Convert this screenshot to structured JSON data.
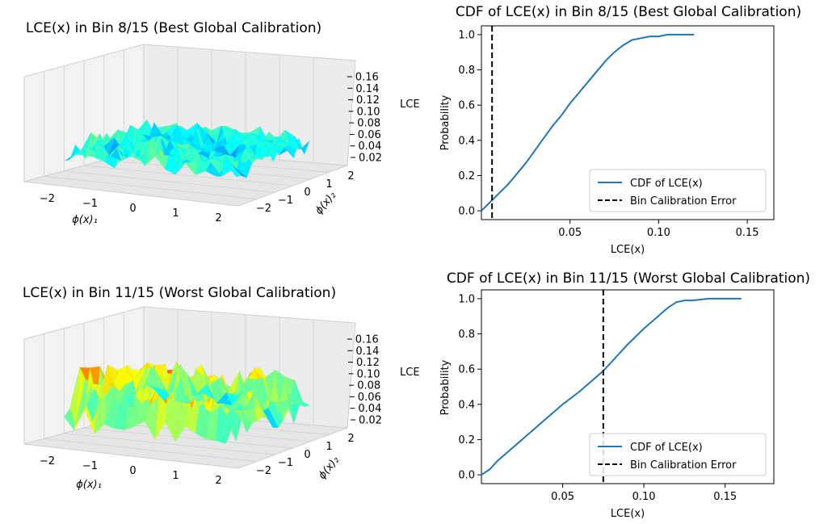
{
  "chart_data": [
    {
      "type": "surface3d",
      "title": "LCE(x) in Bin 8/15 (Best Global Calibration)",
      "xlabel": "ϕ(x)₁",
      "ylabel": "ϕ(x)₂",
      "zlabel": "LCE",
      "x_ticks": [
        "−2",
        "−1",
        "0",
        "1",
        "2"
      ],
      "y_ticks": [
        "−2",
        "−1",
        "0",
        "1",
        "2"
      ],
      "z_ticks": [
        "0.02",
        "0.04",
        "0.06",
        "0.08",
        "0.10",
        "0.12",
        "0.14",
        "0.16"
      ],
      "colormap": [
        "#00008f",
        "#0040ff",
        "#00ffff",
        "#80ff80",
        "#ffff00",
        "#ff8000",
        "#ff0000",
        "#800000"
      ],
      "grid": true
    },
    {
      "type": "line",
      "title": "CDF of LCE(x) in Bin 8/15 (Best Global Calibration)",
      "xlabel": "LCE(x)",
      "ylabel": "Probability",
      "xlim": [
        0.0,
        0.165
      ],
      "ylim": [
        -0.05,
        1.05
      ],
      "x_ticks": [
        0.05,
        0.1,
        0.15
      ],
      "y_ticks": [
        0.0,
        0.2,
        0.4,
        0.6,
        0.8,
        1.0
      ],
      "x_tick_labels": [
        "0.05",
        "0.10",
        "0.15"
      ],
      "y_tick_labels": [
        "0.0",
        "0.2",
        "0.4",
        "0.6",
        "0.8",
        "1.0"
      ],
      "legend": "lower-right",
      "series": [
        {
          "name": "CDF of LCE(x)",
          "color": "#1f77b4",
          "x": [
            0.0,
            0.003,
            0.006,
            0.01,
            0.015,
            0.02,
            0.025,
            0.03,
            0.035,
            0.04,
            0.045,
            0.05,
            0.055,
            0.06,
            0.065,
            0.07,
            0.075,
            0.08,
            0.085,
            0.09,
            0.095,
            0.1,
            0.105,
            0.11,
            0.115,
            0.12
          ],
          "y": [
            0.0,
            0.03,
            0.06,
            0.1,
            0.15,
            0.21,
            0.27,
            0.34,
            0.41,
            0.48,
            0.54,
            0.61,
            0.67,
            0.73,
            0.79,
            0.85,
            0.9,
            0.94,
            0.97,
            0.98,
            0.99,
            0.99,
            1.0,
            1.0,
            1.0,
            1.0
          ]
        }
      ],
      "vline": {
        "name": "Bin Calibration Error",
        "x": 0.006,
        "color": "#000000",
        "style": "dashed"
      }
    },
    {
      "type": "surface3d",
      "title": "LCE(x) in Bin 11/15 (Worst Global Calibration)",
      "xlabel": "ϕ(x)₁",
      "ylabel": "ϕ(x)₂",
      "zlabel": "LCE",
      "x_ticks": [
        "−2",
        "−1",
        "0",
        "1",
        "2"
      ],
      "y_ticks": [
        "−2",
        "−1",
        "0",
        "1",
        "2"
      ],
      "z_ticks": [
        "0.02",
        "0.04",
        "0.06",
        "0.08",
        "0.10",
        "0.12",
        "0.14",
        "0.16"
      ],
      "colormap": [
        "#00008f",
        "#0040ff",
        "#00ffff",
        "#80ff80",
        "#ffff00",
        "#ff8000",
        "#ff0000",
        "#800000"
      ],
      "grid": true
    },
    {
      "type": "line",
      "title": "CDF of LCE(x) in Bin 11/15 (Worst Global Calibration)",
      "xlabel": "LCE(x)",
      "ylabel": "Probability",
      "xlim": [
        0.0,
        0.18
      ],
      "ylim": [
        -0.05,
        1.05
      ],
      "x_ticks": [
        0.05,
        0.1,
        0.15
      ],
      "y_ticks": [
        0.0,
        0.2,
        0.4,
        0.6,
        0.8,
        1.0
      ],
      "x_tick_labels": [
        "0.05",
        "0.10",
        "0.15"
      ],
      "y_tick_labels": [
        "0.0",
        "0.2",
        "0.4",
        "0.6",
        "0.8",
        "1.0"
      ],
      "legend": "lower-right",
      "series": [
        {
          "name": "CDF of LCE(x)",
          "color": "#1f77b4",
          "x": [
            0.0,
            0.005,
            0.01,
            0.02,
            0.03,
            0.04,
            0.05,
            0.06,
            0.07,
            0.075,
            0.08,
            0.09,
            0.1,
            0.11,
            0.115,
            0.12,
            0.125,
            0.13,
            0.14,
            0.15,
            0.16
          ],
          "y": [
            0.0,
            0.03,
            0.08,
            0.16,
            0.24,
            0.32,
            0.4,
            0.47,
            0.55,
            0.59,
            0.64,
            0.74,
            0.83,
            0.91,
            0.95,
            0.98,
            0.99,
            0.99,
            1.0,
            1.0,
            1.0
          ]
        }
      ],
      "vline": {
        "name": "Bin Calibration Error",
        "x": 0.075,
        "color": "#000000",
        "style": "dashed"
      }
    }
  ]
}
